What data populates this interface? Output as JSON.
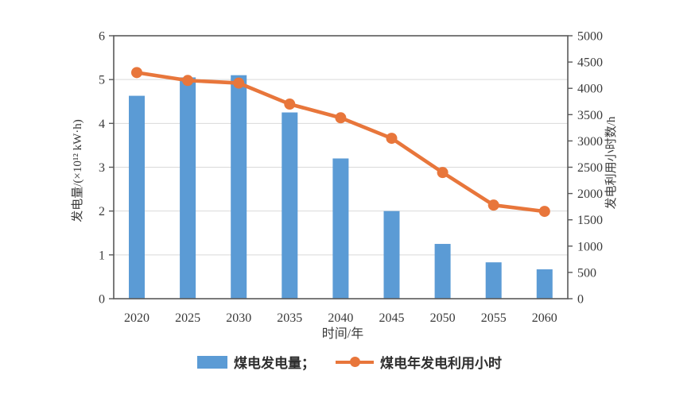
{
  "chart_data": {
    "type": "bar+line combo",
    "categories": [
      "2020",
      "2025",
      "2030",
      "2035",
      "2040",
      "2045",
      "2050",
      "2055",
      "2060"
    ],
    "series": [
      {
        "name": "煤电发电量",
        "type": "bar",
        "axis": "left",
        "unit": "×10¹² kW·h",
        "values": [
          4.63,
          5.05,
          5.1,
          4.25,
          3.2,
          2.0,
          1.25,
          0.83,
          0.67
        ]
      },
      {
        "name": "煤电年发电利用小时",
        "type": "line",
        "axis": "right",
        "unit": "h",
        "values": [
          4300,
          4150,
          4100,
          3700,
          3440,
          3050,
          2400,
          1780,
          1660
        ]
      }
    ],
    "xlabel": "时间/年",
    "left_axis": {
      "title": "发电量/(×10¹² kW·h)",
      "min": 0,
      "max": 6,
      "step": 1
    },
    "right_axis": {
      "title": "发电利用小时数/h",
      "min": 0,
      "max": 5000,
      "step": 500
    },
    "grid": "horizontal gridlines at left-axis integers 1-5",
    "legend_position": "bottom-center"
  },
  "legend": {
    "bar_label": "煤电发电量；",
    "line_label": "煤电年发电利用小时"
  },
  "colors": {
    "bar": "#5B9BD5",
    "line": "#E8763B",
    "frame": "#595959",
    "grid": "#D9D9D9",
    "text": "#3A3A3A"
  }
}
